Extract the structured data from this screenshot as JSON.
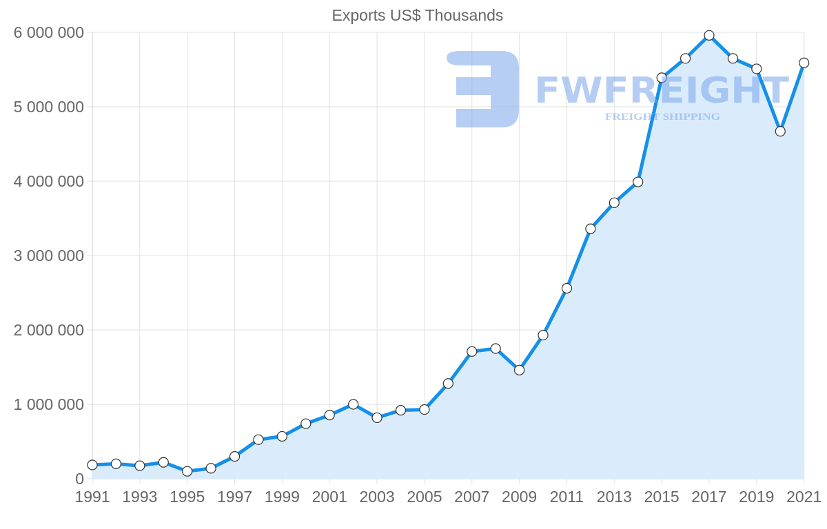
{
  "chart_data": {
    "type": "area",
    "title": "Exports US$ Thousands",
    "xlabel": "",
    "ylabel": "",
    "x": [
      1991,
      1992,
      1993,
      1994,
      1995,
      1996,
      1997,
      1998,
      1999,
      2000,
      2001,
      2002,
      2003,
      2004,
      2005,
      2006,
      2007,
      2008,
      2009,
      2010,
      2011,
      2012,
      2013,
      2014,
      2015,
      2016,
      2017,
      2018,
      2019,
      2020,
      2021
    ],
    "series": [
      {
        "name": "Exports US$ Thousands",
        "values": [
          185000,
          200000,
          175000,
          220000,
          100000,
          140000,
          300000,
          525000,
          570000,
          740000,
          855000,
          1000000,
          820000,
          920000,
          930000,
          1280000,
          1710000,
          1750000,
          1460000,
          1930000,
          2560000,
          3360000,
          3710000,
          3990000,
          5390000,
          5650000,
          5960000,
          5650000,
          5510000,
          4670000,
          5590000
        ]
      }
    ],
    "xtick_labels": [
      "1991",
      "1993",
      "1995",
      "1997",
      "1999",
      "2001",
      "2003",
      "2005",
      "2007",
      "2009",
      "2011",
      "2013",
      "2015",
      "2017",
      "2019",
      "2021"
    ],
    "ytick_labels": [
      "0",
      "1 000 000",
      "2 000 000",
      "3 000 000",
      "4 000 000",
      "5 000 000",
      "6 000 000"
    ],
    "yticks": [
      0,
      1000000,
      2000000,
      3000000,
      4000000,
      5000000,
      6000000
    ],
    "ylim": [
      0,
      6000000
    ],
    "xlim": [
      1991,
      2021
    ],
    "grid": true,
    "legend": null,
    "colors": {
      "line": "#1590ea",
      "fill": "#d8ebfc",
      "point_fill": "#ffffff",
      "point_stroke": "#333333",
      "text": "#666666",
      "grid": "#e2e2e2"
    }
  },
  "watermark": {
    "brand": "FWFREIGHT",
    "tagline": "FREIGHT SHIPPING",
    "color": "#7aa6ea"
  }
}
